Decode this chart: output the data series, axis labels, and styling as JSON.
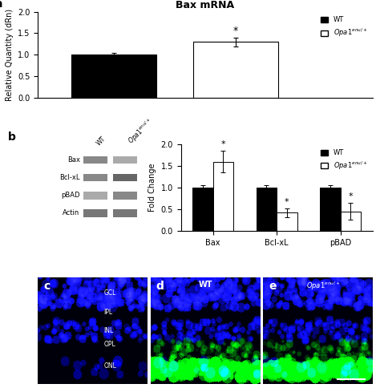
{
  "panel_a": {
    "title": "Bax mRNA",
    "ylabel": "Relative Quantity (dRn)",
    "values": [
      1.0,
      1.3
    ],
    "errors": [
      0.05,
      0.1
    ],
    "colors": [
      "black",
      "white"
    ],
    "ylim": [
      0,
      2
    ],
    "yticks": [
      0,
      0.5,
      1.0,
      1.5,
      2
    ],
    "star_index": 1
  },
  "panel_b_bar": {
    "ylabel": "Fold Change",
    "groups": [
      "Bax",
      "Bcl-xL",
      "pBAD"
    ],
    "wt_values": [
      1.0,
      1.0,
      1.0
    ],
    "opa1_values": [
      1.6,
      0.42,
      0.45
    ],
    "wt_errors": [
      0.05,
      0.05,
      0.05
    ],
    "opa1_errors": [
      0.25,
      0.1,
      0.2
    ],
    "ylim": [
      0,
      2
    ],
    "yticks": [
      0,
      0.5,
      1.0,
      1.5,
      2
    ],
    "star_indices_opa1": [
      0,
      1,
      2
    ]
  },
  "panel_b_blot": {
    "labels": [
      "Bax",
      "Bcl-xL",
      "pBAD",
      "Actin"
    ],
    "band_colors_wt": [
      "#888888",
      "#888888",
      "#aaaaaa",
      "#777777"
    ],
    "band_colors_opa1": [
      "#aaaaaa",
      "#666666",
      "#888888",
      "#777777"
    ]
  },
  "figure_bg": "white",
  "label_fontsize": 10,
  "axis_fontsize": 7,
  "title_fontsize": 9
}
